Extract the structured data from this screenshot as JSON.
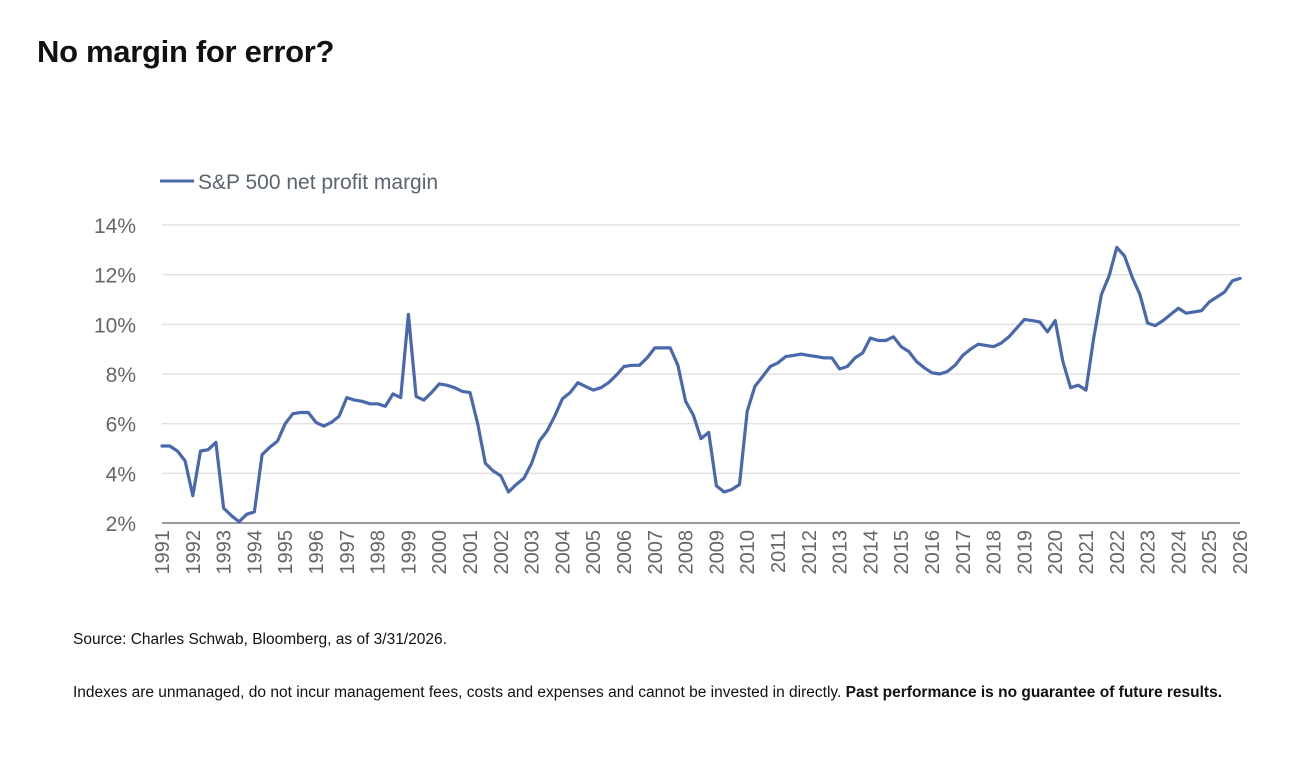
{
  "title": "No margin for error?",
  "source": "Source: Charles Schwab, Bloomberg, as of 3/31/2026.",
  "disclaimer": {
    "text": "Indexes are unmanaged, do not incur management fees, costs and expenses and cannot be invested in directly.",
    "bold": "Past performance is no guarantee of future results."
  },
  "colors": {
    "line": "#4a68ad",
    "grid": "#e2e2e2",
    "axis": "#9a9a9a",
    "tick_text": "#666666"
  },
  "chart_data": {
    "type": "line",
    "title": "",
    "xlabel": "",
    "ylabel": "",
    "legend": {
      "label": "S&P 500 net profit margin",
      "position": "top-left"
    },
    "grid": true,
    "xlim": [
      1991,
      2026
    ],
    "ylim": [
      2,
      14
    ],
    "x_ticks": [
      "1991",
      "1992",
      "1993",
      "1994",
      "1995",
      "1996",
      "1997",
      "1998",
      "1999",
      "2000",
      "2001",
      "2002",
      "2003",
      "2004",
      "2005",
      "2006",
      "2007",
      "2008",
      "2009",
      "2010",
      "2011",
      "2012",
      "2013",
      "2014",
      "2015",
      "2016",
      "2017",
      "2018",
      "2019",
      "2020",
      "2021",
      "2022",
      "2023",
      "2024",
      "2025",
      "2026"
    ],
    "y_ticks": [
      {
        "value": 2,
        "label": "2%"
      },
      {
        "value": 4,
        "label": "4%"
      },
      {
        "value": 6,
        "label": "6%"
      },
      {
        "value": 8,
        "label": "8%"
      },
      {
        "value": 10,
        "label": "10%"
      },
      {
        "value": 12,
        "label": "12%"
      },
      {
        "value": 14,
        "label": "14%"
      }
    ],
    "series": [
      {
        "name": "S&P 500 net profit margin",
        "x": [
          1991.0,
          1991.25,
          1991.5,
          1991.75,
          1992.0,
          1992.25,
          1992.5,
          1992.75,
          1993.0,
          1993.25,
          1993.5,
          1993.75,
          1994.0,
          1994.25,
          1994.5,
          1994.75,
          1995.0,
          1995.25,
          1995.5,
          1995.75,
          1996.0,
          1996.25,
          1996.5,
          1996.75,
          1997.0,
          1997.25,
          1997.5,
          1997.75,
          1998.0,
          1998.25,
          1998.5,
          1998.75,
          1999.0,
          1999.25,
          1999.5,
          1999.75,
          2000.0,
          2000.25,
          2000.5,
          2000.75,
          2001.0,
          2001.25,
          2001.5,
          2001.75,
          2002.0,
          2002.25,
          2002.5,
          2002.75,
          2003.0,
          2003.25,
          2003.5,
          2003.75,
          2004.0,
          2004.25,
          2004.5,
          2004.75,
          2005.0,
          2005.25,
          2005.5,
          2005.75,
          2006.0,
          2006.25,
          2006.5,
          2006.75,
          2007.0,
          2007.25,
          2007.5,
          2007.75,
          2008.0,
          2008.25,
          2008.5,
          2008.75,
          2009.0,
          2009.25,
          2009.5,
          2009.75,
          2010.0,
          2010.25,
          2010.5,
          2010.75,
          2011.0,
          2011.25,
          2011.5,
          2011.75,
          2012.0,
          2012.25,
          2012.5,
          2012.75,
          2013.0,
          2013.25,
          2013.5,
          2013.75,
          2014.0,
          2014.25,
          2014.5,
          2014.75,
          2015.0,
          2015.25,
          2015.5,
          2015.75,
          2016.0,
          2016.25,
          2016.5,
          2016.75,
          2017.0,
          2017.25,
          2017.5,
          2017.75,
          2018.0,
          2018.25,
          2018.5,
          2018.75,
          2019.0,
          2019.25,
          2019.5,
          2019.75,
          2020.0,
          2020.25,
          2020.5,
          2020.75,
          2021.0,
          2021.25,
          2021.5,
          2021.75,
          2022.0,
          2022.25,
          2022.5,
          2022.75,
          2023.0,
          2023.25,
          2023.5,
          2023.75,
          2024.0,
          2024.25,
          2024.5,
          2024.75,
          2025.0,
          2025.25,
          2025.5,
          2025.75,
          2026.0
        ],
        "values": [
          5.1,
          5.1,
          4.9,
          4.5,
          3.1,
          4.9,
          4.95,
          5.25,
          2.6,
          2.3,
          2.05,
          2.35,
          2.45,
          4.75,
          5.05,
          5.3,
          6.0,
          6.4,
          6.45,
          6.45,
          6.05,
          5.9,
          6.05,
          6.3,
          7.05,
          6.95,
          6.9,
          6.8,
          6.8,
          6.7,
          7.2,
          7.05,
          10.4,
          7.1,
          6.95,
          7.25,
          7.6,
          7.55,
          7.45,
          7.3,
          7.25,
          6.0,
          4.4,
          4.1,
          3.9,
          3.25,
          3.55,
          3.8,
          4.4,
          5.3,
          5.7,
          6.3,
          7.0,
          7.25,
          7.65,
          7.5,
          7.35,
          7.45,
          7.65,
          7.95,
          8.3,
          8.35,
          8.35,
          8.65,
          9.05,
          9.05,
          9.05,
          8.35,
          6.9,
          6.35,
          5.4,
          5.65,
          3.5,
          3.25,
          3.35,
          3.55,
          6.5,
          7.5,
          7.9,
          8.3,
          8.45,
          8.7,
          8.75,
          8.8,
          8.75,
          8.7,
          8.65,
          8.65,
          8.2,
          8.3,
          8.65,
          8.85,
          9.45,
          9.35,
          9.35,
          9.5,
          9.1,
          8.9,
          8.5,
          8.25,
          8.05,
          8.0,
          8.1,
          8.35,
          8.75,
          9.0,
          9.2,
          9.15,
          9.1,
          9.25,
          9.5,
          9.85,
          10.2,
          10.15,
          10.1,
          9.7,
          10.15,
          8.5,
          7.45,
          7.55,
          7.35,
          9.45,
          11.2,
          11.95,
          13.1,
          12.75,
          11.9,
          11.2,
          10.05,
          9.95,
          10.15,
          10.4,
          10.65,
          10.45,
          10.5,
          10.55,
          10.9,
          11.1,
          11.3,
          11.75,
          11.85
        ]
      }
    ]
  }
}
